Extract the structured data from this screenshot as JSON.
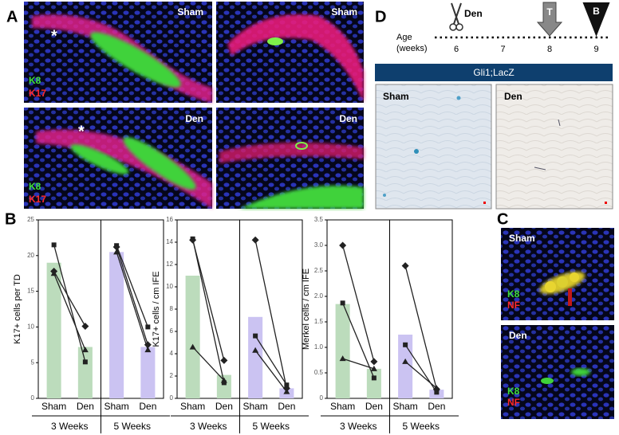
{
  "labels": {
    "a": "A",
    "b": "B",
    "c": "C",
    "d": "D"
  },
  "panel_a": {
    "images": [
      {
        "condition": "Sham",
        "markers": [
          "K8",
          "K17"
        ],
        "asterisk": "*"
      },
      {
        "condition": "Sham"
      },
      {
        "condition": "Den",
        "markers": [
          "K8",
          "K17"
        ],
        "asterisk": "*"
      },
      {
        "condition": "Den"
      }
    ]
  },
  "panel_d": {
    "axis_label": [
      "Age",
      "(weeks)"
    ],
    "ages": [
      6,
      7,
      8,
      9
    ],
    "events": [
      {
        "label": "Den",
        "age": 6
      },
      {
        "label": "T",
        "age": 8
      },
      {
        "label": "B",
        "age": 9
      }
    ],
    "banner": "Gli1;LacZ",
    "images": [
      "Sham",
      "Den"
    ]
  },
  "panel_c": {
    "images": [
      {
        "condition": "Sham",
        "markers": [
          "K8",
          "NF"
        ]
      },
      {
        "condition": "Den",
        "markers": [
          "K8",
          "NF"
        ]
      }
    ]
  },
  "chart_data": [
    {
      "type": "bar",
      "ylabel": "K17+ cells per TD",
      "categories": [
        "Sham",
        "Den",
        "Sham",
        "Den"
      ],
      "groups": [
        "3 Weeks",
        "5 Weeks"
      ],
      "values": [
        19,
        7.2,
        20.5,
        7.2
      ],
      "colors": [
        "#bcdcbc",
        "#bcdcbc",
        "#cbc3f2",
        "#cbc3f2"
      ],
      "ylim": [
        0,
        25
      ],
      "yticks": [
        0,
        5,
        10,
        15,
        20,
        25
      ],
      "series": [
        {
          "marker": "square",
          "values": [
            21.5,
            5.1,
            null,
            null
          ]
        },
        {
          "marker": "diamond",
          "values": [
            17.8,
            10.1,
            null,
            null
          ]
        },
        {
          "marker": "triangle",
          "values": [
            17.5,
            6.8,
            null,
            null
          ]
        },
        {
          "marker": "square",
          "values": [
            null,
            null,
            21.4,
            10
          ]
        },
        {
          "marker": "diamond",
          "values": [
            null,
            null,
            21.2,
            7.5
          ]
        },
        {
          "marker": "triangle",
          "values": [
            null,
            null,
            20.5,
            6.8
          ]
        }
      ]
    },
    {
      "type": "bar",
      "ylabel": "K17+ cells / cm IFE",
      "categories": [
        "Sham",
        "Den",
        "Sham",
        "Den"
      ],
      "groups": [
        "3 Weeks",
        "5 Weeks"
      ],
      "values": [
        11,
        2.1,
        7.3,
        0.9
      ],
      "colors": [
        "#bcdcbc",
        "#bcdcbc",
        "#cbc3f2",
        "#cbc3f2"
      ],
      "ylim": [
        0,
        16
      ],
      "yticks": [
        0,
        2,
        4,
        6,
        8,
        10,
        12,
        14,
        16
      ],
      "series": [
        {
          "marker": "square",
          "values": [
            14.3,
            1.4,
            null,
            null
          ]
        },
        {
          "marker": "diamond",
          "values": [
            14.2,
            3.4,
            null,
            null
          ]
        },
        {
          "marker": "triangle",
          "values": [
            4.6,
            1.6,
            null,
            null
          ]
        },
        {
          "marker": "diamond",
          "values": [
            null,
            null,
            14.2,
            0.9
          ]
        },
        {
          "marker": "square",
          "values": [
            null,
            null,
            5.6,
            1.2
          ]
        },
        {
          "marker": "triangle",
          "values": [
            null,
            null,
            4.3,
            0.6
          ]
        }
      ]
    },
    {
      "type": "bar",
      "ylabel": "Merkel cells / cm IFE",
      "categories": [
        "Sham",
        "Den",
        "Sham",
        "Den"
      ],
      "groups": [
        "3 Weeks",
        "5 Weeks"
      ],
      "values": [
        1.85,
        0.58,
        1.25,
        0.17
      ],
      "colors": [
        "#bcdcbc",
        "#bcdcbc",
        "#cbc3f2",
        "#cbc3f2"
      ],
      "ylim": [
        0,
        3.5
      ],
      "yticks": [
        0,
        0.5,
        {
          "value": 1,
          "label": "1.0"
        },
        1.5,
        {
          "value": 2,
          "label": "2.0"
        },
        2.5,
        {
          "value": 3,
          "label": "3.0"
        },
        3.5
      ],
      "series": [
        {
          "marker": "diamond",
          "values": [
            3.0,
            0.72,
            null,
            null
          ]
        },
        {
          "marker": "square",
          "values": [
            1.87,
            0.4,
            null,
            null
          ]
        },
        {
          "marker": "triangle",
          "values": [
            0.78,
            0.58,
            null,
            null
          ]
        },
        {
          "marker": "diamond",
          "values": [
            null,
            null,
            2.6,
            0.18
          ]
        },
        {
          "marker": "square",
          "values": [
            null,
            null,
            1.05,
            0.12
          ]
        },
        {
          "marker": "triangle",
          "values": [
            null,
            null,
            0.72,
            0.2
          ]
        }
      ]
    }
  ]
}
